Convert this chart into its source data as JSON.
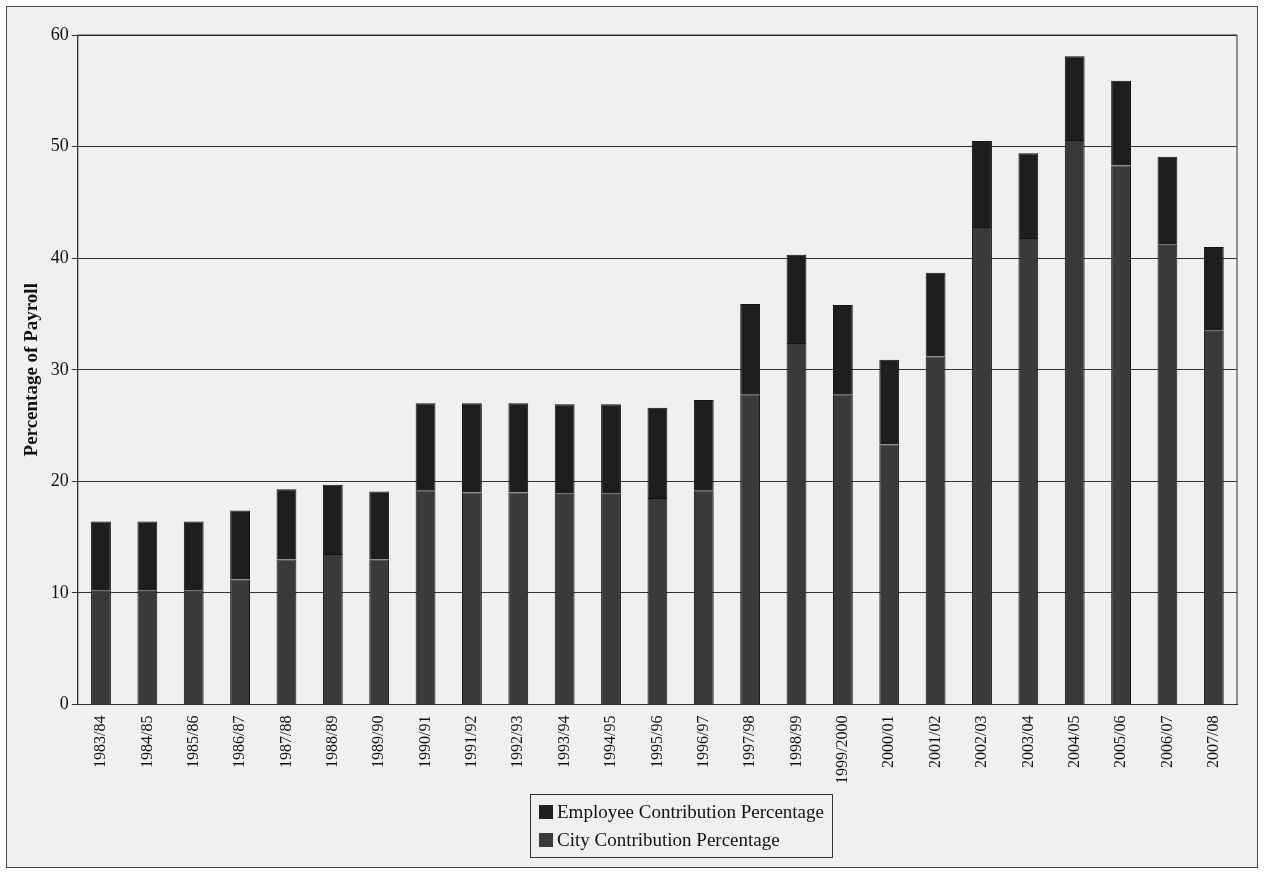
{
  "chart_data": {
    "type": "bar",
    "ylabel": "Percentage of Payroll",
    "categories": [
      "1983/84",
      "1984/85",
      "1985/86",
      "1986/87",
      "1987/88",
      "1988/89",
      "1989/90",
      "1990/91",
      "1991/92",
      "1992/93",
      "1993/94",
      "1994/95",
      "1995/96",
      "1996/97",
      "1997/98",
      "1998/99",
      "1999/2000",
      "2000/01",
      "2001/02",
      "2002/03",
      "2003/04",
      "2004/05",
      "2005/06",
      "2006/07",
      "2007/08"
    ],
    "stacked": true,
    "series": [
      {
        "name": "City Contribution Percentage",
        "color": "#3a3a3a",
        "values": [
          10.2,
          10.2,
          10.2,
          11.2,
          13.0,
          13.5,
          13.0,
          19.2,
          19.0,
          19.0,
          18.9,
          18.9,
          18.5,
          19.2,
          27.8,
          32.4,
          27.8,
          23.3,
          31.2,
          42.8,
          41.8,
          50.6,
          48.3,
          41.2,
          33.5
        ]
      },
      {
        "name": "Employee Contribution Percentage",
        "color": "#1e1e1e",
        "values": [
          6.2,
          6.2,
          6.2,
          6.2,
          6.3,
          6.2,
          6.1,
          7.8,
          8.0,
          8.0,
          8.0,
          8.0,
          8.1,
          8.1,
          8.1,
          7.9,
          8.0,
          7.6,
          7.5,
          7.7,
          7.6,
          7.5,
          7.6,
          7.9,
          7.5
        ]
      }
    ],
    "ylim": [
      0,
      60
    ],
    "yticks": [
      0,
      10,
      20,
      30,
      40,
      50,
      60
    ],
    "grid": "y",
    "legend": "bottom"
  }
}
